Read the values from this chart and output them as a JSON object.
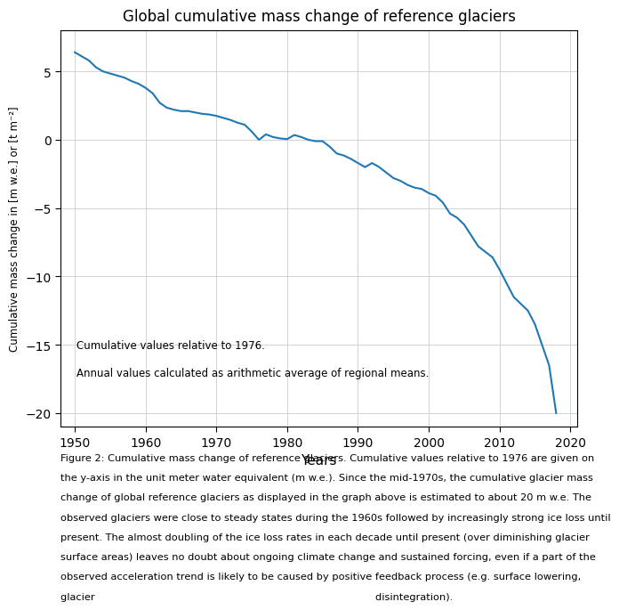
{
  "title": "Global cumulative mass change of reference glaciers",
  "xlabel": "Years",
  "ylabel": "Cumulative mass change in [m w.e.] or [t m⁻²]",
  "line_color": "#1f77b4",
  "line_width": 1.5,
  "xlim": [
    1948,
    2021
  ],
  "ylim": [
    -21,
    8
  ],
  "yticks": [
    -20,
    -15,
    -10,
    -5,
    0,
    5
  ],
  "xticks": [
    1950,
    1960,
    1970,
    1980,
    1990,
    2000,
    2010,
    2020
  ],
  "annotation_line1": "Cumulative values relative to 1976.",
  "annotation_line2": "Annual values calculated as arithmetic average of regional means.",
  "caption_lines": [
    "Figure 2: Cumulative mass change of reference glaciers. Cumulative values relative to 1976 are given on",
    "the y-axis in the unit meter water equivalent (m w.e.). Since the mid-1970s, the cumulative glacier mass",
    "change of global reference glaciers as displayed in the graph above is estimated to about 20 m w.e. The",
    "observed glaciers were close to steady states during the 1960s followed by increasingly strong ice loss until",
    "present. The almost doubling of the ice loss rates in each decade until present (over diminishing glacier",
    "surface areas) leaves no doubt about ongoing climate change and sustained forcing, even if a part of the",
    "observed acceleration trend is likely to be caused by positive feedback process (e.g. surface lowering,",
    "glacier                                                                                       disintegration)."
  ],
  "years": [
    1950,
    1951,
    1952,
    1953,
    1954,
    1955,
    1956,
    1957,
    1958,
    1959,
    1960,
    1961,
    1962,
    1963,
    1964,
    1965,
    1966,
    1967,
    1968,
    1969,
    1970,
    1971,
    1972,
    1973,
    1974,
    1975,
    1976,
    1977,
    1978,
    1979,
    1980,
    1981,
    1982,
    1983,
    1984,
    1985,
    1986,
    1987,
    1988,
    1989,
    1990,
    1991,
    1992,
    1993,
    1994,
    1995,
    1996,
    1997,
    1998,
    1999,
    2000,
    2001,
    2002,
    2003,
    2004,
    2005,
    2006,
    2007,
    2008,
    2009,
    2010,
    2011,
    2012,
    2013,
    2014,
    2015,
    2016,
    2017,
    2018
  ],
  "values": [
    6.4,
    6.1,
    5.8,
    5.3,
    5.0,
    4.85,
    4.7,
    4.55,
    4.3,
    4.1,
    3.8,
    3.4,
    2.7,
    2.35,
    2.2,
    2.1,
    2.1,
    2.0,
    1.9,
    1.85,
    1.75,
    1.6,
    1.45,
    1.25,
    1.1,
    0.6,
    0.0,
    0.4,
    0.2,
    0.1,
    0.05,
    0.35,
    0.2,
    0.0,
    -0.1,
    -0.1,
    -0.5,
    -1.0,
    -1.15,
    -1.4,
    -1.7,
    -2.0,
    -1.7,
    -2.0,
    -2.4,
    -2.8,
    -3.0,
    -3.3,
    -3.5,
    -3.6,
    -3.9,
    -4.1,
    -4.6,
    -5.4,
    -5.7,
    -6.2,
    -7.0,
    -7.8,
    -8.2,
    -8.6,
    -9.5,
    -10.5,
    -11.5,
    -12.0,
    -12.5,
    -13.5,
    -15.0,
    -16.5,
    -20.0
  ]
}
